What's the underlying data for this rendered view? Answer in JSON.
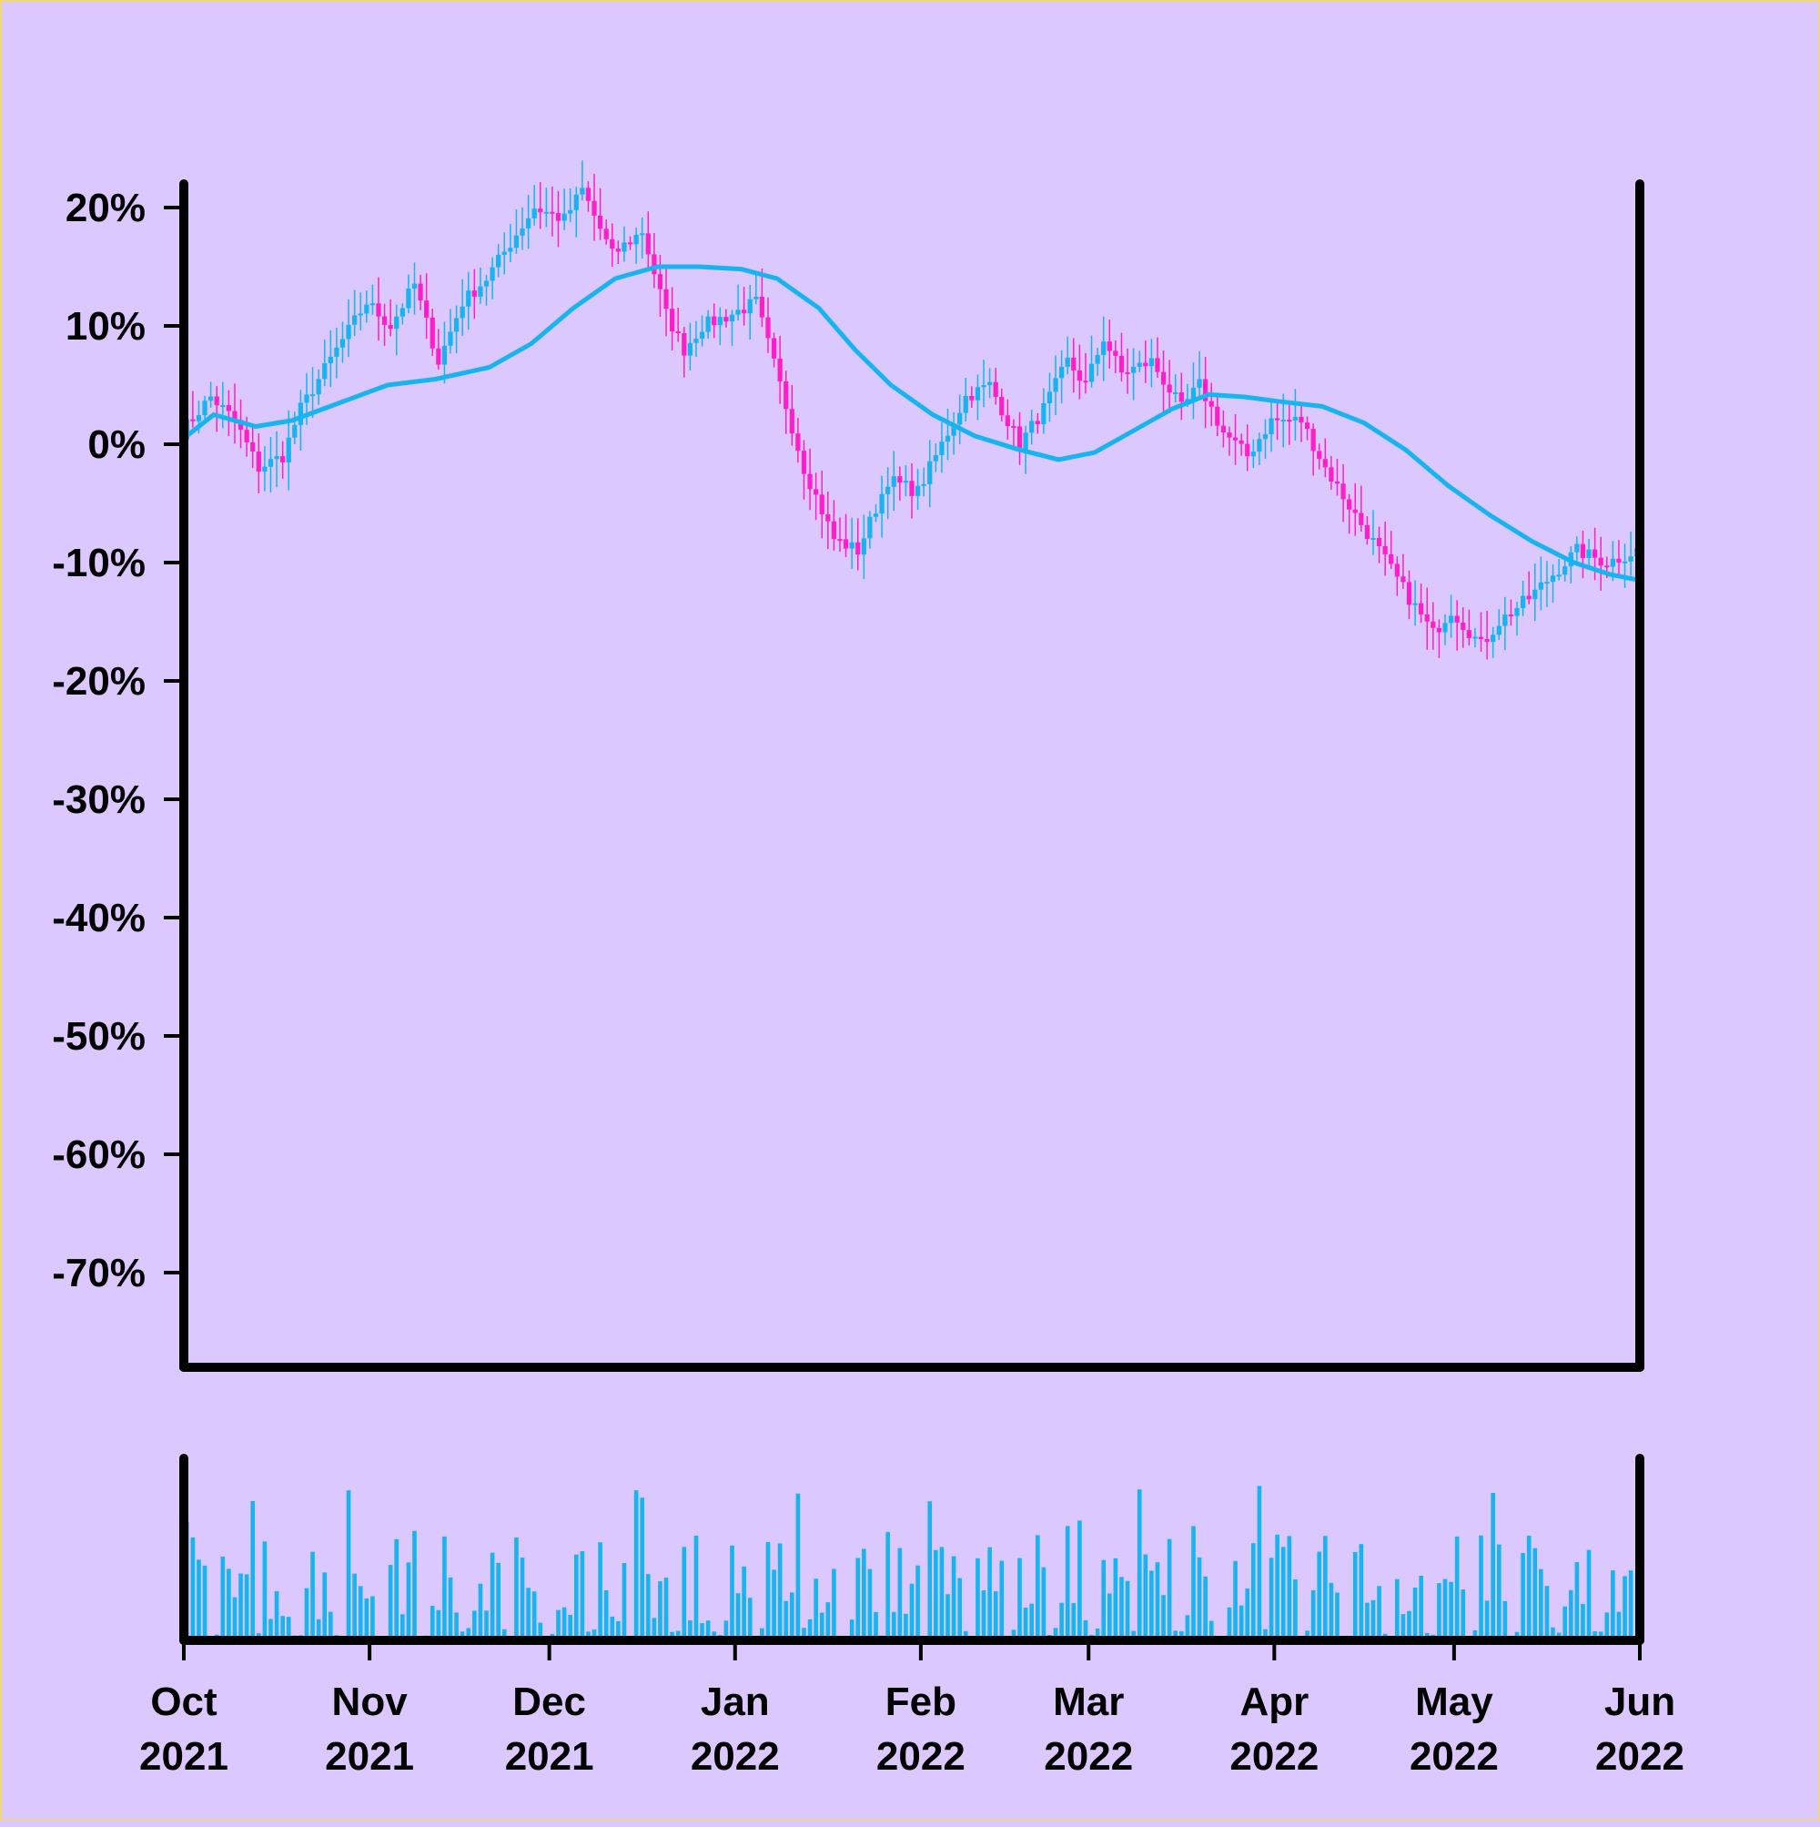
{
  "colors": {
    "background": "#dac8ff",
    "up": "#17b4f0",
    "down": "#ff1fc8",
    "moving_average": "#17b4f0",
    "volume": "#17b4f0",
    "axis": "#000000"
  },
  "chart_data": {
    "type": "candlestick",
    "title": "",
    "ylim": [
      -0.78,
      0.22
    ],
    "yticks": [
      0.2,
      0.1,
      0.0,
      -0.1,
      -0.2,
      -0.3,
      -0.4,
      -0.5,
      -0.6,
      -0.7
    ],
    "ytick_labels": [
      "20%",
      "10%",
      "0%",
      "-10%",
      "-20%",
      "-30%",
      "-40%",
      "-50%",
      "-60%",
      "-70%"
    ],
    "xlim": [
      "2021-10-01",
      "2022-06-01"
    ],
    "xticks": [
      "2021-10-01",
      "2021-11-01",
      "2021-12-01",
      "2022-01-01",
      "2022-02-01",
      "2022-03-01",
      "2022-04-01",
      "2022-05-01",
      "2022-06-01"
    ],
    "xtick_labels": [
      [
        "Oct",
        "2021"
      ],
      [
        "Nov",
        "2021"
      ],
      [
        "Dec",
        "2021"
      ],
      [
        "Jan",
        "2022"
      ],
      [
        "Feb",
        "2022"
      ],
      [
        "Mar",
        "2022"
      ],
      [
        "Apr",
        "2022"
      ],
      [
        "May",
        "2022"
      ],
      [
        "Jun",
        "2022"
      ]
    ],
    "price_path": [
      [
        "2021-10-01",
        0.01
      ],
      [
        "2021-10-06",
        0.04
      ],
      [
        "2021-10-10",
        0.02
      ],
      [
        "2021-10-14",
        -0.02
      ],
      [
        "2021-10-18",
        -0.01
      ],
      [
        "2021-10-21",
        0.03
      ],
      [
        "2021-10-27",
        0.08
      ],
      [
        "2021-11-01",
        0.12
      ],
      [
        "2021-11-05",
        0.1
      ],
      [
        "2021-11-09",
        0.135
      ],
      [
        "2021-11-13",
        0.07
      ],
      [
        "2021-11-17",
        0.12
      ],
      [
        "2021-11-21",
        0.14
      ],
      [
        "2021-11-25",
        0.17
      ],
      [
        "2021-11-29",
        0.2
      ],
      [
        "2021-12-04",
        0.19
      ],
      [
        "2021-12-07",
        0.215
      ],
      [
        "2021-12-12",
        0.16
      ],
      [
        "2021-12-17",
        0.18
      ],
      [
        "2021-12-21",
        0.11
      ],
      [
        "2021-12-24",
        0.08
      ],
      [
        "2021-12-27",
        0.1
      ],
      [
        "2022-01-01",
        0.11
      ],
      [
        "2022-01-05",
        0.12
      ],
      [
        "2022-01-09",
        0.05
      ],
      [
        "2022-01-13",
        -0.02
      ],
      [
        "2022-01-18",
        -0.08
      ],
      [
        "2022-01-22",
        -0.09
      ],
      [
        "2022-01-27",
        -0.03
      ],
      [
        "2022-02-01",
        -0.04
      ],
      [
        "2022-02-05",
        0.0
      ],
      [
        "2022-02-09",
        0.04
      ],
      [
        "2022-02-13",
        0.05
      ],
      [
        "2022-02-18",
        0.0
      ],
      [
        "2022-02-22",
        0.03
      ],
      [
        "2022-02-26",
        0.07
      ],
      [
        "2022-03-01",
        0.05
      ],
      [
        "2022-03-04",
        0.09
      ],
      [
        "2022-03-07",
        0.06
      ],
      [
        "2022-03-12",
        0.07
      ],
      [
        "2022-03-17",
        0.03
      ],
      [
        "2022-03-20",
        0.05
      ],
      [
        "2022-03-24",
        0.01
      ],
      [
        "2022-03-28",
        -0.01
      ],
      [
        "2022-04-01",
        0.02
      ],
      [
        "2022-04-06",
        0.02
      ],
      [
        "2022-04-10",
        -0.02
      ],
      [
        "2022-04-15",
        -0.06
      ],
      [
        "2022-04-19",
        -0.09
      ],
      [
        "2022-04-24",
        -0.13
      ],
      [
        "2022-04-28",
        -0.16
      ],
      [
        "2022-05-01",
        -0.14
      ],
      [
        "2022-05-06",
        -0.17
      ],
      [
        "2022-05-09",
        -0.15
      ],
      [
        "2022-05-14",
        -0.13
      ],
      [
        "2022-05-18",
        -0.11
      ],
      [
        "2022-05-22",
        -0.09
      ],
      [
        "2022-05-27",
        -0.1
      ],
      [
        "2022-06-01",
        -0.09
      ]
    ],
    "moving_average": [
      [
        "2021-10-01",
        0.005
      ],
      [
        "2021-10-06",
        0.025
      ],
      [
        "2021-10-13",
        0.015
      ],
      [
        "2021-10-19",
        0.02
      ],
      [
        "2021-10-27",
        0.035
      ],
      [
        "2021-11-04",
        0.05
      ],
      [
        "2021-11-12",
        0.055
      ],
      [
        "2021-11-21",
        0.065
      ],
      [
        "2021-11-28",
        0.085
      ],
      [
        "2021-12-05",
        0.115
      ],
      [
        "2021-12-12",
        0.14
      ],
      [
        "2021-12-19",
        0.15
      ],
      [
        "2021-12-26",
        0.15
      ],
      [
        "2022-01-02",
        0.148
      ],
      [
        "2022-01-08",
        0.14
      ],
      [
        "2022-01-15",
        0.115
      ],
      [
        "2022-01-21",
        0.08
      ],
      [
        "2022-01-27",
        0.05
      ],
      [
        "2022-02-03",
        0.025
      ],
      [
        "2022-02-10",
        0.007
      ],
      [
        "2022-02-17",
        -0.004
      ],
      [
        "2022-02-24",
        -0.013
      ],
      [
        "2022-03-02",
        -0.007
      ],
      [
        "2022-03-08",
        0.01
      ],
      [
        "2022-03-15",
        0.03
      ],
      [
        "2022-03-21",
        0.042
      ],
      [
        "2022-03-27",
        0.04
      ],
      [
        "2022-04-02",
        0.036
      ],
      [
        "2022-04-09",
        0.032
      ],
      [
        "2022-04-16",
        0.018
      ],
      [
        "2022-04-23",
        -0.005
      ],
      [
        "2022-04-30",
        -0.035
      ],
      [
        "2022-05-07",
        -0.06
      ],
      [
        "2022-05-14",
        -0.082
      ],
      [
        "2022-05-21",
        -0.1
      ],
      [
        "2022-05-27",
        -0.11
      ],
      [
        "2022-06-01",
        -0.115
      ]
    ]
  }
}
